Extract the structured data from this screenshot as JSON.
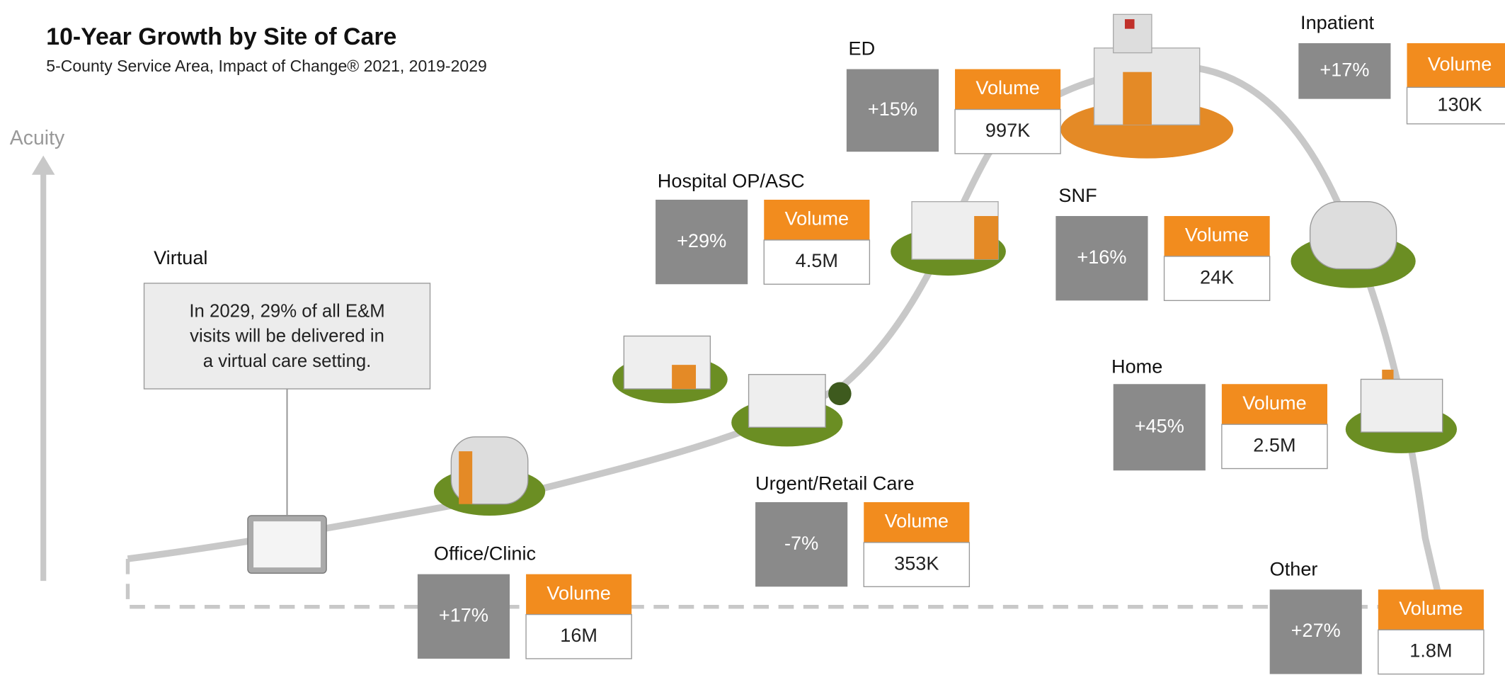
{
  "header": {
    "title": "10-Year Growth by Site of Care",
    "subtitle": "5-County Service Area, Impact of Change® 2021, 2019-2029"
  },
  "axis_label": "Acuity",
  "virtual": {
    "label": "Virtual",
    "note": [
      "In 2029, 29% of all E&M",
      "visits will be delivered in",
      "a virtual care setting."
    ]
  },
  "sites": [
    {
      "name": "ED",
      "change": "+15%",
      "volume_label": "Volume",
      "volume": "997K"
    },
    {
      "name": "Inpatient",
      "change": "+17%",
      "volume_label": "Volume",
      "volume": "130K"
    },
    {
      "name": "Hospital OP/ASC",
      "change": "+29%",
      "volume_label": "Volume",
      "volume": "4.5M"
    },
    {
      "name": "SNF",
      "change": "+16%",
      "volume_label": "Volume",
      "volume": "24K"
    },
    {
      "name": "Home",
      "change": "+45%",
      "volume_label": "Volume",
      "volume": "2.5M"
    },
    {
      "name": "Urgent/Retail Care",
      "change": "-7%",
      "volume_label": "Volume",
      "volume": "353K"
    },
    {
      "name": "Office/Clinic",
      "change": "+17%",
      "volume_label": "Volume",
      "volume": "16M"
    },
    {
      "name": "Other",
      "change": "+27%",
      "volume_label": "Volume",
      "volume": "1.8M"
    }
  ]
}
